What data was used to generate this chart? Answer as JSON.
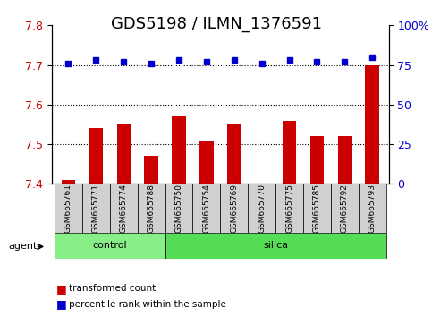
{
  "title": "GDS5198 / ILMN_1376591",
  "samples": [
    "GSM665761",
    "GSM665771",
    "GSM665774",
    "GSM665788",
    "GSM665750",
    "GSM665754",
    "GSM665769",
    "GSM665770",
    "GSM665775",
    "GSM665785",
    "GSM665792",
    "GSM665793"
  ],
  "red_values": [
    7.41,
    7.54,
    7.55,
    7.47,
    7.57,
    7.51,
    7.55,
    7.4,
    7.56,
    7.52,
    7.52,
    7.7
  ],
  "blue_values": [
    76,
    78,
    77,
    76,
    78,
    77,
    78,
    76,
    78,
    77,
    77,
    80
  ],
  "control_count": 4,
  "silica_count": 8,
  "ylim_left": [
    7.4,
    7.8
  ],
  "ylim_right": [
    0,
    100
  ],
  "yticks_left": [
    7.4,
    7.5,
    7.6,
    7.7,
    7.8
  ],
  "yticks_right": [
    0,
    25,
    50,
    75,
    100
  ],
  "ytick_right_labels": [
    "0",
    "25",
    "50",
    "75",
    "100%"
  ],
  "grid_lines": [
    7.5,
    7.6,
    7.7
  ],
  "bar_color": "#cc0000",
  "dot_color": "#0000cc",
  "control_color": "#88ee88",
  "silica_color": "#55dd55",
  "agent_label": "agent",
  "control_label": "control",
  "silica_label": "silica",
  "legend_red": "transformed count",
  "legend_blue": "percentile rank within the sample",
  "bar_bottom": 7.4,
  "title_fontsize": 13,
  "tick_fontsize": 9,
  "label_fontsize": 8
}
